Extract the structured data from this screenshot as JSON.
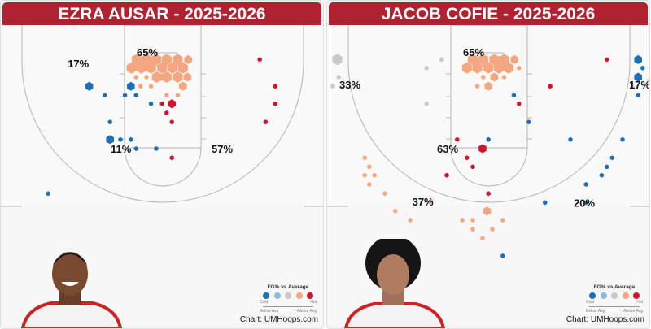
{
  "colors": {
    "cold": "#1f6fb4",
    "cool": "#92b9dc",
    "avg": "#c9c9c9",
    "warm": "#f4a680",
    "hot": "#d0142b",
    "title_bar": "#b02230"
  },
  "legend": {
    "title": "FG% vs Average",
    "cold": "Cold",
    "hot": "Hot",
    "below": "Below Avg",
    "above": "Above Avg"
  },
  "credit": "Chart: UMHoops.com",
  "chart_data": [
    {
      "type": "scatter",
      "title": "EZRA AUSAR - 2025-2026",
      "units": "feet (x from center, y from baseline)",
      "zone_labels": [
        {
          "text": "65%",
          "x": -2.5,
          "y": 4.1
        },
        {
          "text": "17%",
          "x": -13.1,
          "y": 5.9
        },
        {
          "text": "11%",
          "x": -6.5,
          "y": 19
        },
        {
          "text": "57%",
          "x": 9,
          "y": 19
        }
      ],
      "shots": [
        {
          "x": -4,
          "y": 5.3,
          "c": "warm",
          "n": 3
        },
        {
          "x": -2.5,
          "y": 5.3,
          "c": "warm",
          "n": 3
        },
        {
          "x": -1,
          "y": 5.3,
          "c": "warm",
          "n": 3
        },
        {
          "x": 0.6,
          "y": 5.3,
          "c": "warm",
          "n": 3
        },
        {
          "x": 2.3,
          "y": 5.3,
          "c": "warm",
          "n": 3
        },
        {
          "x": 3.9,
          "y": 5.3,
          "c": "warm",
          "n": 2
        },
        {
          "x": -4.8,
          "y": 6.6,
          "c": "warm",
          "n": 3
        },
        {
          "x": -3.3,
          "y": 6.6,
          "c": "warm",
          "n": 3
        },
        {
          "x": -1.8,
          "y": 6.6,
          "c": "warm",
          "n": 3
        },
        {
          "x": -0.1,
          "y": 6.6,
          "c": "warm",
          "n": 3
        },
        {
          "x": 1.5,
          "y": 6.6,
          "c": "warm",
          "n": 3
        },
        {
          "x": 3.1,
          "y": 6.6,
          "c": "warm",
          "n": 3
        },
        {
          "x": -0.9,
          "y": 8,
          "c": "warm",
          "n": 3
        },
        {
          "x": 0.6,
          "y": 8,
          "c": "warm",
          "n": 3
        },
        {
          "x": 2.3,
          "y": 8,
          "c": "warm",
          "n": 3
        },
        {
          "x": 3.8,
          "y": 8,
          "c": "warm",
          "n": 2
        },
        {
          "x": 3.1,
          "y": 9.4,
          "c": "warm",
          "n": 2
        },
        {
          "x": -4.1,
          "y": 8,
          "c": "warm",
          "n": 1
        },
        {
          "x": -2.5,
          "y": 8,
          "c": "warm",
          "n": 1
        },
        {
          "x": -3.4,
          "y": 9.4,
          "c": "warm",
          "n": 1
        },
        {
          "x": -1.8,
          "y": 9.4,
          "c": "warm",
          "n": 1
        },
        {
          "x": 0.6,
          "y": 10.8,
          "c": "warm",
          "n": 1
        },
        {
          "x": 2.3,
          "y": 10.8,
          "c": "warm",
          "n": 1
        },
        {
          "x": -11.3,
          "y": 9.4,
          "c": "cold",
          "n": 2
        },
        {
          "x": -4.9,
          "y": 9.4,
          "c": "cold",
          "n": 2
        },
        {
          "x": -8.1,
          "y": 17.6,
          "c": "cold",
          "n": 2
        },
        {
          "x": -8.9,
          "y": 10.8,
          "c": "cold",
          "n": 1
        },
        {
          "x": -5.8,
          "y": 10.8,
          "c": "cold",
          "n": 1
        },
        {
          "x": -4.1,
          "y": 10.8,
          "c": "cold",
          "n": 1
        },
        {
          "x": -1.8,
          "y": 12.1,
          "c": "cold",
          "n": 1
        },
        {
          "x": -8.1,
          "y": 14.9,
          "c": "cold",
          "n": 1
        },
        {
          "x": -6.5,
          "y": 17.6,
          "c": "cold",
          "n": 1
        },
        {
          "x": -4.9,
          "y": 17.6,
          "c": "cold",
          "n": 1
        },
        {
          "x": -4.1,
          "y": 19,
          "c": "cold",
          "n": 1
        },
        {
          "x": -1,
          "y": 19,
          "c": "cold",
          "n": 1
        },
        {
          "x": -17.6,
          "y": 25.9,
          "c": "cold",
          "n": 1
        },
        {
          "x": 1.4,
          "y": 12.1,
          "c": "hot",
          "n": 2
        },
        {
          "x": -0.1,
          "y": 12.1,
          "c": "hot",
          "n": 1
        },
        {
          "x": 0.6,
          "y": 13.5,
          "c": "hot",
          "n": 1
        },
        {
          "x": 1.4,
          "y": 14.9,
          "c": "hot",
          "n": 1
        },
        {
          "x": 1.4,
          "y": 20.4,
          "c": "hot",
          "n": 1
        },
        {
          "x": 14.9,
          "y": 5.3,
          "c": "hot",
          "n": 1
        },
        {
          "x": 17.3,
          "y": 9.4,
          "c": "hot",
          "n": 1
        },
        {
          "x": 17.3,
          "y": 12.1,
          "c": "hot",
          "n": 1
        },
        {
          "x": 15.8,
          "y": 14.9,
          "c": "hot",
          "n": 1
        }
      ]
    },
    {
      "type": "scatter",
      "title": "JACOB COFIE - 2025-2026",
      "units": "feet (x from center, y from baseline)",
      "zone_labels": [
        {
          "text": "65%",
          "x": -2.5,
          "y": 4.1
        },
        {
          "text": "33%",
          "x": -21.5,
          "y": 9.1
        },
        {
          "text": "17%",
          "x": 23,
          "y": 9.1
        },
        {
          "text": "63%",
          "x": -6.5,
          "y": 19
        },
        {
          "text": "37%",
          "x": -10.3,
          "y": 27.1
        },
        {
          "text": "20%",
          "x": 14.5,
          "y": 27.3
        }
      ],
      "shots": [
        {
          "x": -23.3,
          "y": 5.3,
          "c": "avg",
          "n": 3
        },
        {
          "x": -23.1,
          "y": 8,
          "c": "avg",
          "n": 1
        },
        {
          "x": -24,
          "y": 9.4,
          "c": "avg",
          "n": 1
        },
        {
          "x": -7.3,
          "y": 5.3,
          "c": "avg",
          "n": 1
        },
        {
          "x": -9.6,
          "y": 6.6,
          "c": "avg",
          "n": 1
        },
        {
          "x": -9.6,
          "y": 12.1,
          "c": "avg",
          "n": 1
        },
        {
          "x": -2.5,
          "y": 5.3,
          "c": "warm",
          "n": 3
        },
        {
          "x": -0.9,
          "y": 5.3,
          "c": "warm",
          "n": 3
        },
        {
          "x": 0.8,
          "y": 5.3,
          "c": "warm",
          "n": 3
        },
        {
          "x": 2.3,
          "y": 5.3,
          "c": "warm",
          "n": 3
        },
        {
          "x": 3.9,
          "y": 5.3,
          "c": "warm",
          "n": 2
        },
        {
          "x": -3.4,
          "y": 6.6,
          "c": "warm",
          "n": 3
        },
        {
          "x": -1.8,
          "y": 6.6,
          "c": "warm",
          "n": 3
        },
        {
          "x": -0.1,
          "y": 6.6,
          "c": "warm",
          "n": 3
        },
        {
          "x": 1.5,
          "y": 6.6,
          "c": "warm",
          "n": 3
        },
        {
          "x": 3,
          "y": 6.6,
          "c": "warm",
          "n": 3
        },
        {
          "x": 4.6,
          "y": 6.6,
          "c": "warm",
          "n": 1
        },
        {
          "x": -0.9,
          "y": 8,
          "c": "warm",
          "n": 1
        },
        {
          "x": 0.8,
          "y": 8,
          "c": "warm",
          "n": 2
        },
        {
          "x": 2.3,
          "y": 8,
          "c": "warm",
          "n": 1
        },
        {
          "x": -1.8,
          "y": 9.4,
          "c": "warm",
          "n": 1
        },
        {
          "x": -0.1,
          "y": 9.4,
          "c": "warm",
          "n": 2
        },
        {
          "x": -19.1,
          "y": 20.4,
          "c": "warm",
          "n": 1
        },
        {
          "x": -18.4,
          "y": 21.8,
          "c": "warm",
          "n": 1
        },
        {
          "x": -19.1,
          "y": 23.1,
          "c": "warm",
          "n": 1
        },
        {
          "x": -17.6,
          "y": 23.1,
          "c": "warm",
          "n": 1
        },
        {
          "x": -18.4,
          "y": 24.5,
          "c": "warm",
          "n": 1
        },
        {
          "x": -16,
          "y": 25.9,
          "c": "warm",
          "n": 1
        },
        {
          "x": -8.9,
          "y": 27.1,
          "c": "warm",
          "n": 1
        },
        {
          "x": -14.4,
          "y": 28.6,
          "c": "warm",
          "n": 1
        },
        {
          "x": -12.1,
          "y": 30,
          "c": "warm",
          "n": 1
        },
        {
          "x": -4.1,
          "y": 30,
          "c": "warm",
          "n": 1
        },
        {
          "x": -2.5,
          "y": 30,
          "c": "warm",
          "n": 1
        },
        {
          "x": -2.5,
          "y": 31.4,
          "c": "warm",
          "n": 1
        },
        {
          "x": -0.3,
          "y": 28.6,
          "c": "warm",
          "n": 2
        },
        {
          "x": -1,
          "y": 32.8,
          "c": "warm",
          "n": 1
        },
        {
          "x": 0.5,
          "y": 31.4,
          "c": "warm",
          "n": 1
        },
        {
          "x": 2.1,
          "y": 30,
          "c": "warm",
          "n": 1
        },
        {
          "x": 18.1,
          "y": 5.3,
          "c": "hot",
          "n": 1
        },
        {
          "x": 9.4,
          "y": 9.4,
          "c": "hot",
          "n": 1
        },
        {
          "x": 4.6,
          "y": 12.1,
          "c": "hot",
          "n": 1
        },
        {
          "x": -4.9,
          "y": 17.6,
          "c": "hot",
          "n": 1
        },
        {
          "x": -1,
          "y": 19,
          "c": "hot",
          "n": 2
        },
        {
          "x": -3.4,
          "y": 20.4,
          "c": "hot",
          "n": 1
        },
        {
          "x": -2.5,
          "y": 21.8,
          "c": "hot",
          "n": 1
        },
        {
          "x": -6.5,
          "y": 23.1,
          "c": "hot",
          "n": 1
        },
        {
          "x": -0.1,
          "y": 25.9,
          "c": "hot",
          "n": 1
        },
        {
          "x": 22.9,
          "y": 5.3,
          "c": "cold",
          "n": 2
        },
        {
          "x": 23.6,
          "y": 6.6,
          "c": "cold",
          "n": 1
        },
        {
          "x": 22.9,
          "y": 8,
          "c": "cold",
          "n": 2
        },
        {
          "x": 22.9,
          "y": 10.8,
          "c": "cold",
          "n": 1
        },
        {
          "x": 3.8,
          "y": 10.8,
          "c": "cold",
          "n": 1
        },
        {
          "x": 6.1,
          "y": 14.9,
          "c": "cold",
          "n": 1
        },
        {
          "x": -0.1,
          "y": 17.6,
          "c": "cold",
          "n": 1
        },
        {
          "x": 12.5,
          "y": 17.6,
          "c": "cold",
          "n": 1
        },
        {
          "x": 20.5,
          "y": 17.6,
          "c": "cold",
          "n": 1
        },
        {
          "x": 18.9,
          "y": 20.4,
          "c": "cold",
          "n": 1
        },
        {
          "x": 18.1,
          "y": 21.8,
          "c": "cold",
          "n": 1
        },
        {
          "x": 17.3,
          "y": 23.1,
          "c": "cold",
          "n": 1
        },
        {
          "x": 14.9,
          "y": 24.5,
          "c": "cold",
          "n": 1
        },
        {
          "x": 14.9,
          "y": 27.3,
          "c": "cold",
          "n": 1
        },
        {
          "x": 8.6,
          "y": 27.3,
          "c": "cold",
          "n": 1
        },
        {
          "x": 2.1,
          "y": 35.5,
          "c": "cold",
          "n": 1
        }
      ]
    }
  ]
}
